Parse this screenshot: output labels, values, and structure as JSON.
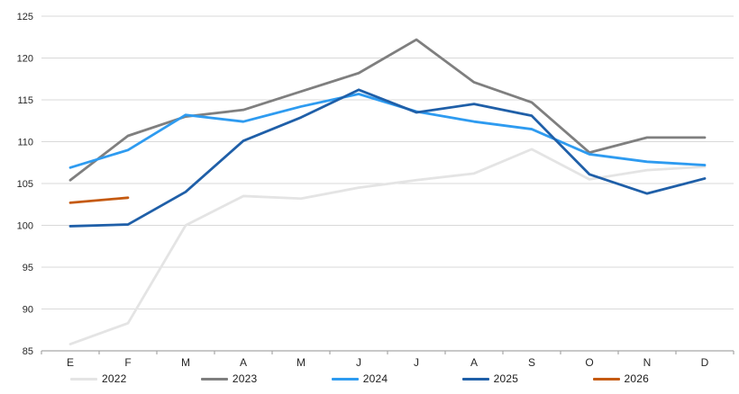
{
  "chart_data": {
    "type": "line",
    "title": "",
    "xlabel": "",
    "ylabel": "",
    "categories": [
      "E",
      "F",
      "M",
      "A",
      "M",
      "J",
      "J",
      "A",
      "S",
      "O",
      "N",
      "D"
    ],
    "yticks": [
      85,
      90,
      95,
      100,
      105,
      110,
      115,
      120,
      125
    ],
    "ylim": [
      85,
      125
    ],
    "grid": "horizontal",
    "gridline_color": "#d9d9d9",
    "axis_line_color": "#a6a6a6",
    "legend_position": "bottom",
    "series": [
      {
        "name": "2022",
        "color": "#e4e4e4",
        "values": [
          85.8,
          88.3,
          100.0,
          103.5,
          103.2,
          104.5,
          105.4,
          106.2,
          109.1,
          105.5,
          106.6,
          107.0
        ]
      },
      {
        "name": "2023",
        "color": "#7f7f7f",
        "values": [
          105.4,
          110.7,
          113.0,
          113.8,
          116.0,
          118.2,
          122.2,
          117.1,
          114.7,
          108.7,
          110.5,
          110.5
        ]
      },
      {
        "name": "2024",
        "color": "#2e9bf0",
        "values": [
          106.9,
          109.0,
          113.2,
          112.4,
          114.2,
          115.7,
          113.6,
          112.4,
          111.5,
          108.5,
          107.6,
          107.2
        ]
      },
      {
        "name": "2025",
        "color": "#1f5fa8",
        "values": [
          99.9,
          100.1,
          104.0,
          110.1,
          112.9,
          116.2,
          113.5,
          114.5,
          113.1,
          106.1,
          103.8,
          105.6
        ]
      },
      {
        "name": "2026",
        "color": "#c55a11",
        "values": [
          102.7,
          103.3,
          null,
          null,
          null,
          null,
          null,
          null,
          null,
          null,
          null,
          null
        ]
      }
    ]
  }
}
